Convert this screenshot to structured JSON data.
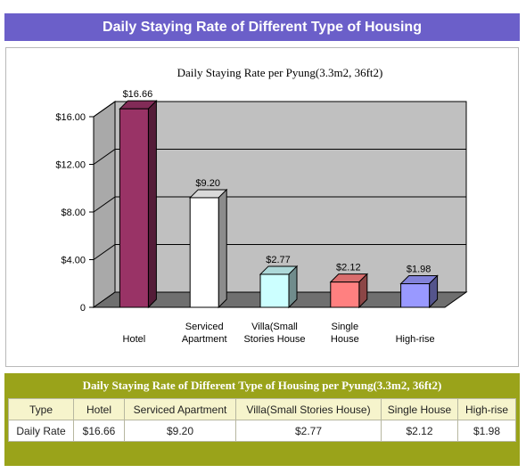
{
  "banner": {
    "title": "Daily Staying Rate of Different Type of Housing"
  },
  "chart_data": {
    "type": "bar",
    "title": "Daily Staying Rate per Pyung(3.3m2, 36ft2)",
    "categories": [
      "Hotel",
      "Serviced Apartment",
      "Villa(Small Stories House",
      "Single House",
      "High-rise"
    ],
    "category_lines": [
      [
        "Hotel"
      ],
      [
        "Serviced",
        "Apartment"
      ],
      [
        "Villa(Small",
        "Stories House"
      ],
      [
        "Single",
        "House"
      ],
      [
        "High-rise"
      ]
    ],
    "values": [
      16.66,
      9.2,
      2.77,
      2.12,
      1.98
    ],
    "data_labels": [
      "$16.66",
      "$9.20",
      "$2.77",
      "$2.12",
      "$1.98"
    ],
    "y_ticks": [
      0,
      4,
      8,
      12,
      16
    ],
    "y_tick_labels": [
      "0",
      "$4.00",
      "$8.00",
      "$12.00",
      "$16.00"
    ],
    "ylim": [
      0,
      16
    ],
    "grid": true,
    "bar_colors": [
      "#993366",
      "#ffffff",
      "#ccffff",
      "#ff8080",
      "#9999ff"
    ],
    "xlabel": "",
    "ylabel": ""
  },
  "table": {
    "title": "Daily Staying Rate of Different Type of Housing per Pyung(3.3m2, 36ft2)",
    "headers": [
      "Type",
      "Hotel",
      "Serviced Apartment",
      "Villa(Small Stories House)",
      "Single House",
      "High-rise"
    ],
    "row": [
      "Daily Rate",
      "$16.66",
      "$9.20",
      "$2.77",
      "$2.12",
      "$1.98"
    ]
  }
}
